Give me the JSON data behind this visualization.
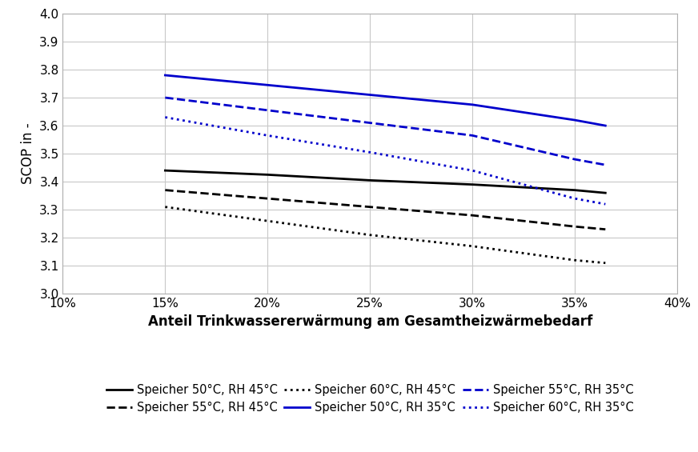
{
  "title": "",
  "xlabel": "Anteil Trinkwassererwärmung am Gesamtheizwärmebedarf",
  "ylabel": "SCOP in -",
  "xlim": [
    0.1,
    0.4
  ],
  "ylim": [
    3.0,
    4.0
  ],
  "xticks": [
    0.1,
    0.15,
    0.2,
    0.25,
    0.3,
    0.35,
    0.4
  ],
  "yticks": [
    3.0,
    3.1,
    3.2,
    3.3,
    3.4,
    3.5,
    3.6,
    3.7,
    3.8,
    3.9,
    4.0
  ],
  "lines": [
    {
      "label": "Speicher 50°C, RH 45°C",
      "color": "#000000",
      "linestyle": "solid",
      "linewidth": 2.0,
      "x": [
        0.15,
        0.2,
        0.25,
        0.3,
        0.35,
        0.365
      ],
      "y": [
        3.44,
        3.425,
        3.405,
        3.39,
        3.37,
        3.36
      ]
    },
    {
      "label": "Speicher 55°C, RH 45°C",
      "color": "#000000",
      "linestyle": "dashed",
      "linewidth": 2.0,
      "x": [
        0.15,
        0.2,
        0.25,
        0.3,
        0.35,
        0.365
      ],
      "y": [
        3.37,
        3.34,
        3.31,
        3.28,
        3.24,
        3.23
      ]
    },
    {
      "label": "Speicher 60°C, RH 45°C",
      "color": "#000000",
      "linestyle": "dotted",
      "linewidth": 2.0,
      "x": [
        0.15,
        0.2,
        0.25,
        0.3,
        0.35,
        0.365
      ],
      "y": [
        3.31,
        3.26,
        3.21,
        3.17,
        3.12,
        3.11
      ]
    },
    {
      "label": "Speicher 50°C, RH 35°C",
      "color": "#0000cc",
      "linestyle": "solid",
      "linewidth": 2.0,
      "x": [
        0.15,
        0.2,
        0.25,
        0.3,
        0.35,
        0.365
      ],
      "y": [
        3.78,
        3.745,
        3.71,
        3.675,
        3.62,
        3.6
      ]
    },
    {
      "label": "Speicher 55°C, RH 35°C",
      "color": "#0000cc",
      "linestyle": "dashed",
      "linewidth": 2.0,
      "x": [
        0.15,
        0.2,
        0.25,
        0.3,
        0.35,
        0.365
      ],
      "y": [
        3.7,
        3.655,
        3.61,
        3.565,
        3.48,
        3.46
      ]
    },
    {
      "label": "Speicher 60°C, RH 35°C",
      "color": "#0000cc",
      "linestyle": "dotted",
      "linewidth": 2.0,
      "x": [
        0.15,
        0.2,
        0.25,
        0.3,
        0.35,
        0.365
      ],
      "y": [
        3.63,
        3.565,
        3.505,
        3.44,
        3.34,
        3.32
      ]
    }
  ],
  "legend_entries_row1": [
    {
      "label": "Speicher 50°C, RH 45°C",
      "color": "#000000",
      "linestyle": "solid"
    },
    {
      "label": "Speicher 55°C, RH 45°C",
      "color": "#000000",
      "linestyle": "dashed"
    },
    {
      "label": "Speicher 60°C, RH 45°C",
      "color": "#000000",
      "linestyle": "dotted"
    }
  ],
  "legend_entries_row2": [
    {
      "label": "Speicher 50°C, RH 35°C",
      "color": "#0000cc",
      "linestyle": "solid"
    },
    {
      "label": "Speicher 55°C, RH 35°C",
      "color": "#0000cc",
      "linestyle": "dashed"
    },
    {
      "label": "Speicher 60°C, RH 35°C",
      "color": "#0000cc",
      "linestyle": "dotted"
    }
  ],
  "background_color": "#ffffff",
  "grid_color": "#c8c8c8",
  "xlabel_fontsize": 12,
  "ylabel_fontsize": 12,
  "tick_fontsize": 11,
  "legend_fontsize": 10.5
}
